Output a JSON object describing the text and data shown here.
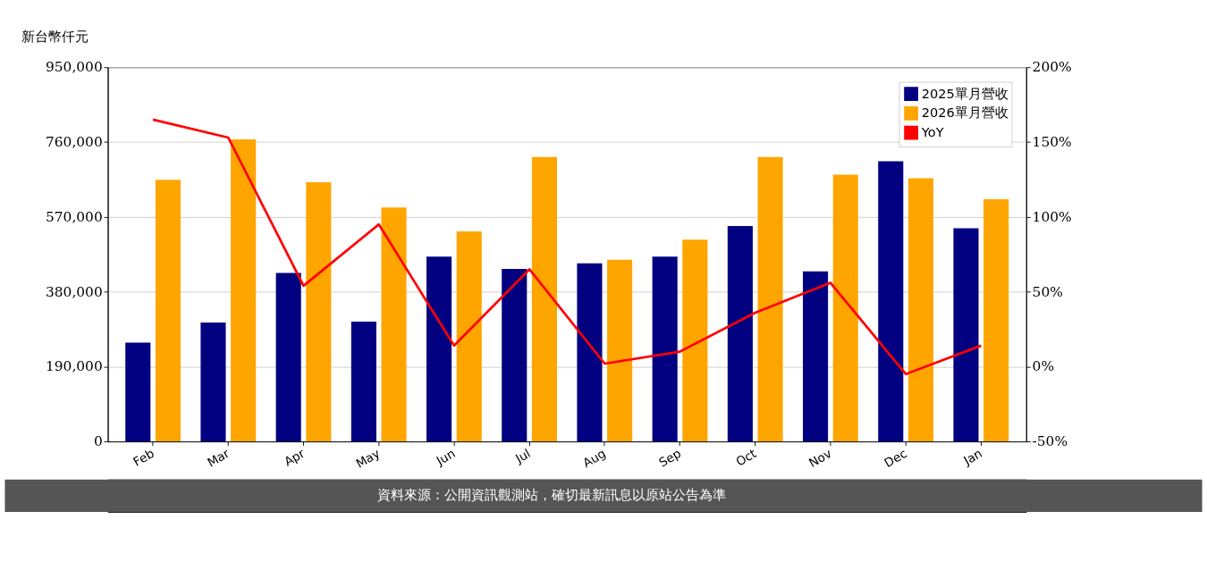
{
  "chart_data": {
    "type": "bar",
    "ylabel": "新台幣仟元",
    "categories": [
      "Feb",
      "Mar",
      "Apr",
      "May",
      "Jun",
      "Jul",
      "Aug",
      "Sep",
      "Oct",
      "Nov",
      "Dec",
      "Jan"
    ],
    "series": [
      {
        "name": "2025單月營收",
        "color": "#000080",
        "values": [
          251000,
          302000,
          428000,
          304000,
          469000,
          438000,
          452000,
          469000,
          547000,
          432000,
          711000,
          541000
        ]
      },
      {
        "name": "2026單月營收",
        "color": "#ffa500",
        "values": [
          664000,
          767000,
          658000,
          594000,
          533000,
          722000,
          461000,
          512000,
          722000,
          677000,
          668000,
          615000
        ]
      },
      {
        "name": "YoY",
        "type": "line",
        "axis": "y2",
        "color": "#ff0000",
        "values": [
          165,
          153,
          54,
          95,
          14,
          65,
          2,
          10,
          36,
          56,
          -5,
          14
        ]
      }
    ],
    "ylim": [
      0,
      950000
    ],
    "yticks": [
      0,
      {
        "value": 190000,
        "label": "190,000"
      },
      {
        "value": 380000,
        "label": "380,000"
      },
      {
        "value": 570000,
        "label": "570,000"
      },
      {
        "value": 760000,
        "label": "760,000"
      },
      {
        "value": 950000,
        "label": "950,000"
      }
    ],
    "y2lim": [
      -50,
      200
    ],
    "y2ticks": [
      {
        "value": -50,
        "label": "-50%"
      },
      {
        "value": 0,
        "label": "0%"
      },
      {
        "value": 50,
        "label": "50%"
      },
      {
        "value": 100,
        "label": "100%"
      },
      {
        "value": 150,
        "label": "150%"
      },
      {
        "value": 200,
        "label": "200%"
      }
    ],
    "grid": "y",
    "legend": "top right",
    "annotations": [
      "資料來源：公開資訊觀測站，確切最新訊息以原站公告為準"
    ]
  }
}
